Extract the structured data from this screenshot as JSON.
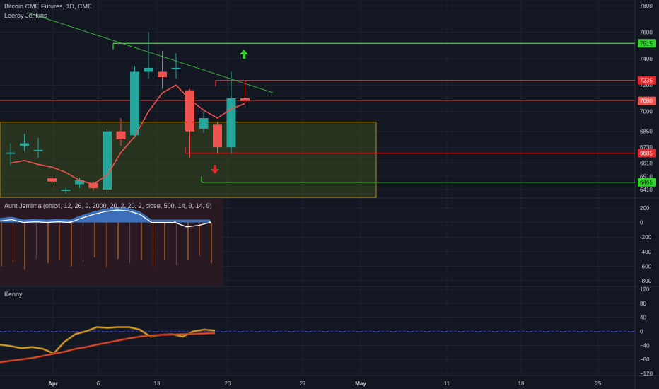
{
  "header": {
    "title": "Bitcoin CME Futures, 1D, CME",
    "overlay_study": "Leeroy Jenkins"
  },
  "colors": {
    "background": "#131722",
    "grid": "#1e2230",
    "up": "#26a69a",
    "down": "#ef5350",
    "green_line": "#32d12e",
    "red_line": "#e0282c",
    "trendline": "#3cae3c",
    "ma": "#ef5350",
    "zone_fill": "#3b4a1e",
    "zone_border": "#b08a2e"
  },
  "chart_data": [
    {
      "pane": "price",
      "type": "candlestick",
      "x_axis_ticks": [
        "Apr",
        "6",
        "13",
        "20",
        "27",
        "May",
        "11",
        "18",
        "25"
      ],
      "y_axis_ticks": [
        7800,
        7600,
        7400,
        7200,
        7000,
        6850,
        6730,
        6610,
        6510,
        6410
      ],
      "ylim": [
        6380,
        7860
      ],
      "candles": [
        {
          "open": 6690,
          "high": 6760,
          "low": 6590,
          "close": 6690
        },
        {
          "open": 6740,
          "high": 6830,
          "low": 6700,
          "close": 6760
        },
        {
          "open": 6700,
          "high": 6800,
          "low": 6650,
          "close": 6710
        },
        {
          "open": 6495,
          "high": 6560,
          "low": 6440,
          "close": 6470
        },
        {
          "open": 6405,
          "high": 6420,
          "low": 6380,
          "close": 6410
        },
        {
          "open": 6450,
          "high": 6500,
          "low": 6420,
          "close": 6480
        },
        {
          "open": 6460,
          "high": 6470,
          "low": 6400,
          "close": 6420
        },
        {
          "open": 6410,
          "high": 6870,
          "low": 6380,
          "close": 6850
        },
        {
          "open": 6850,
          "high": 6950,
          "low": 6740,
          "close": 6790
        },
        {
          "open": 6820,
          "high": 7340,
          "low": 6800,
          "close": 7300
        },
        {
          "open": 7300,
          "high": 7600,
          "low": 7250,
          "close": 7330
        },
        {
          "open": 7300,
          "high": 7460,
          "low": 7170,
          "close": 7260
        },
        {
          "open": 7330,
          "high": 7440,
          "low": 7250,
          "close": 7330
        },
        {
          "open": 7160,
          "high": 7170,
          "low": 6650,
          "close": 6850
        },
        {
          "open": 6870,
          "high": 7000,
          "low": 6840,
          "close": 6950
        },
        {
          "open": 6900,
          "high": 6920,
          "low": 6680,
          "close": 6730
        },
        {
          "open": 6730,
          "high": 7300,
          "low": 6680,
          "close": 7100
        },
        {
          "open": 7100,
          "high": 7240,
          "low": 7060,
          "close": 7080
        }
      ],
      "moving_average": [
        6610,
        6630,
        6600,
        6580,
        6540,
        6480,
        6450,
        6520,
        6690,
        6810,
        7000,
        7140,
        7200,
        7090,
        7010,
        6950,
        7020,
        7060
      ],
      "horizontal_levels": [
        {
          "price": 7515,
          "label": "7515",
          "color": "#32d12e"
        },
        {
          "price": 7235,
          "label": "7235",
          "color": "#e0282c"
        },
        {
          "price": 7080,
          "label": "7080",
          "color": "#ef5350"
        },
        {
          "price": 6685,
          "label": "6685",
          "color": "#e0282c"
        },
        {
          "price": 6465,
          "label": "6465",
          "color": "#32d12e"
        }
      ]
    },
    {
      "pane": "oscillator-1",
      "name": "Aunt Jemima (ohlc4, 12, 26, 9, 2000, 20, 2, 20, 2, close, 500, 14, 9, 14, 9)",
      "type": "histogram-line",
      "y_axis_ticks": [
        200,
        0,
        -200,
        -400,
        -600,
        -800
      ],
      "ylim": [
        -850,
        310
      ],
      "line": [
        20,
        40,
        0,
        10,
        0,
        10,
        0,
        60,
        110,
        150,
        170,
        160,
        110,
        0,
        0,
        0,
        -60,
        -40,
        0
      ],
      "bars": [
        -600,
        -550,
        -650,
        -500,
        -560,
        -520,
        -600,
        -540,
        -480,
        -620,
        -500,
        -560,
        -520,
        -600,
        -520,
        -580,
        -520,
        -460,
        -560
      ]
    },
    {
      "pane": "oscillator-2",
      "name": "Kenny",
      "type": "line",
      "y_axis_ticks": [
        120,
        80,
        40,
        0,
        -40,
        -80,
        -120
      ],
      "ylim": [
        -125,
        128
      ],
      "series": [
        {
          "values": [
            -38,
            -42,
            -48,
            -45,
            -50,
            -63,
            -30,
            -8,
            0,
            12,
            10,
            12,
            12,
            5,
            -15,
            -10,
            -8,
            -15,
            0,
            5,
            2
          ]
        },
        {
          "values": [
            -88,
            -84,
            -80,
            -76,
            -70,
            -64,
            -58,
            -50,
            -45,
            -38,
            -32,
            -26,
            -20,
            -15,
            -12,
            -10,
            -9,
            -8,
            -7,
            -6,
            -5
          ]
        }
      ]
    }
  ]
}
